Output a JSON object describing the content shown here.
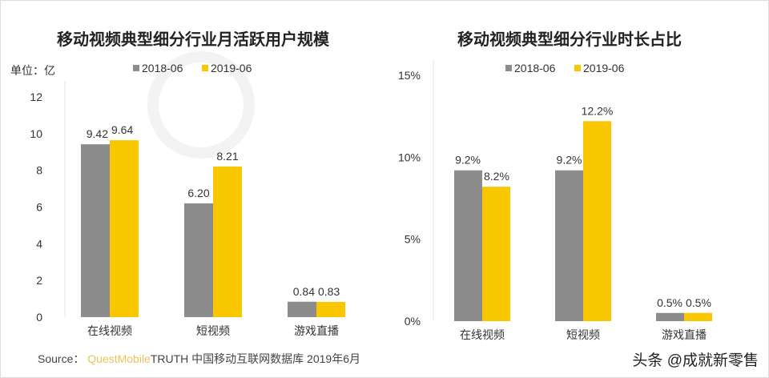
{
  "colors": {
    "s2018": "#8c8c8c",
    "s2019": "#f8c700"
  },
  "watermark": "QUESTMOBILE",
  "chart_data": [
    {
      "type": "bar",
      "title": "移动视频典型细分行业月活跃用户规模",
      "unit_label": "单位：亿",
      "categories": [
        "在线视频",
        "短视频",
        "游戏直播"
      ],
      "series": [
        {
          "name": "2018-06",
          "values": [
            9.42,
            6.2,
            0.84
          ],
          "labels": [
            "9.42",
            "6.20",
            "0.84"
          ]
        },
        {
          "name": "2019-06",
          "values": [
            9.64,
            8.21,
            0.83
          ],
          "labels": [
            "9.64",
            "8.21",
            "0.83"
          ]
        }
      ],
      "ylim": [
        0,
        12
      ],
      "yticks": [
        0,
        2,
        4,
        6,
        8,
        10,
        12
      ],
      "ytick_labels": [
        "0",
        "2",
        "4",
        "6",
        "8",
        "10",
        "12"
      ],
      "legend": "top",
      "grid": false
    },
    {
      "type": "bar",
      "title": "移动视频典型细分行业时长占比",
      "categories": [
        "在线视频",
        "短视频",
        "游戏直播"
      ],
      "series": [
        {
          "name": "2018-06",
          "values": [
            9.2,
            9.2,
            0.5
          ],
          "labels": [
            "9.2%",
            "9.2%",
            "0.5%"
          ]
        },
        {
          "name": "2019-06",
          "values": [
            8.2,
            12.2,
            0.5
          ],
          "labels": [
            "8.2%",
            "12.2%",
            "0.5%"
          ]
        }
      ],
      "ylim": [
        0,
        15
      ],
      "yticks": [
        0,
        5,
        10,
        15
      ],
      "ytick_labels": [
        "0%",
        "5%",
        "10%",
        "15%"
      ],
      "legend": "top",
      "grid": false
    }
  ],
  "footer": {
    "source_prefix": "Source：",
    "source_brand": "QuestMobile",
    "source_rest": "TRUTH 中国移动互联网数据库 2019年6月",
    "credit": "头条 @成就新零售"
  }
}
